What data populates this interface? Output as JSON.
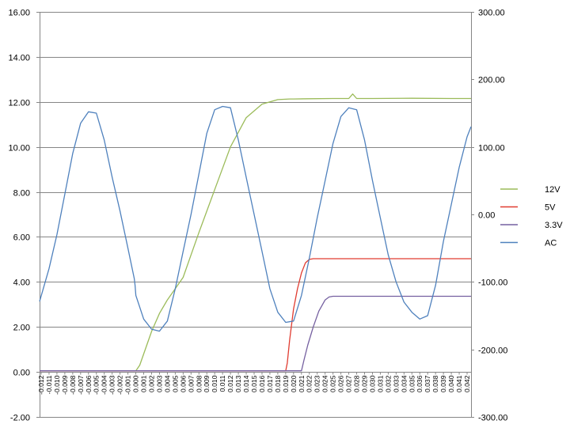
{
  "chart_data": {
    "type": "line",
    "title": "",
    "xlabel": "",
    "ylabel": "",
    "y2label": "",
    "grid": true,
    "legend_position": "right",
    "xlim": [
      -0.0122,
      0.0425
    ],
    "ylim": [
      -2,
      16
    ],
    "y2lim": [
      -300,
      300
    ],
    "y_ticks": [
      "-2.00",
      "0.00",
      "2.00",
      "4.00",
      "6.00",
      "8.00",
      "10.00",
      "12.00",
      "14.00",
      "16.00"
    ],
    "y2_ticks": [
      "-300.00",
      "-200.00",
      "-100.00",
      "0.00",
      "100.00",
      "200.00",
      "300.00"
    ],
    "x_ticks": [
      "-0.012",
      "-0.011",
      "-0.010",
      "-0.009",
      "-0.008",
      "-0.007",
      "-0.006",
      "-0.005",
      "-0.004",
      "-0.003",
      "-0.002",
      "-0.001",
      "0.000",
      "0.001",
      "0.002",
      "0.003",
      "0.004",
      "0.005",
      "0.006",
      "0.007",
      "0.008",
      "0.009",
      "0.010",
      "0.011",
      "0.012",
      "0.013",
      "0.014",
      "0.015",
      "0.016",
      "0.017",
      "0.018",
      "0.019",
      "0.020",
      "0.021",
      "0.022",
      "0.023",
      "0.024",
      "0.025",
      "0.026",
      "0.027",
      "0.028",
      "0.029",
      "0.030",
      "0.031",
      "0.032",
      "0.033",
      "0.034",
      "0.035",
      "0.036",
      "0.037",
      "0.038",
      "0.039",
      "0.040",
      "0.041",
      "0.042"
    ],
    "series": [
      {
        "name": "12V",
        "axis": "left",
        "color": "#9bbb59",
        "x": [
          -0.0122,
          0.0,
          0.0005,
          0.001,
          0.0015,
          0.002,
          0.003,
          0.004,
          0.005,
          0.006,
          0.007,
          0.008,
          0.01,
          0.012,
          0.014,
          0.016,
          0.018,
          0.019,
          0.0195,
          0.02,
          0.022,
          0.025,
          0.027,
          0.0275,
          0.028,
          0.03,
          0.035,
          0.04,
          0.0425
        ],
        "y": [
          0.05,
          0.05,
          0.3,
          0.8,
          1.3,
          1.8,
          2.6,
          3.2,
          3.7,
          4.2,
          5.2,
          6.2,
          8.1,
          10.0,
          11.3,
          11.9,
          12.1,
          12.12,
          12.13,
          12.13,
          12.14,
          12.15,
          12.15,
          12.35,
          12.15,
          12.15,
          12.16,
          12.15,
          12.15
        ]
      },
      {
        "name": "5V",
        "axis": "left",
        "color": "#e03c31",
        "x": [
          -0.0122,
          0.019,
          0.0192,
          0.0195,
          0.02,
          0.0205,
          0.021,
          0.0215,
          0.022,
          0.0225,
          0.025,
          0.03,
          0.035,
          0.04,
          0.0425
        ],
        "y": [
          0.05,
          0.05,
          0.4,
          1.4,
          2.8,
          3.7,
          4.4,
          4.85,
          5.0,
          5.03,
          5.03,
          5.03,
          5.03,
          5.03,
          5.03
        ]
      },
      {
        "name": "3.3V",
        "axis": "left",
        "color": "#7560a0",
        "x": [
          -0.0122,
          0.021,
          0.0213,
          0.0218,
          0.0225,
          0.0232,
          0.024,
          0.0245,
          0.025,
          0.03,
          0.035,
          0.04,
          0.0425
        ],
        "y": [
          0.05,
          0.05,
          0.5,
          1.2,
          2.0,
          2.7,
          3.2,
          3.33,
          3.36,
          3.36,
          3.36,
          3.36,
          3.36
        ]
      },
      {
        "name": "AC",
        "axis": "right",
        "color": "#4f81bd",
        "x": [
          -0.0122,
          -0.011,
          -0.01,
          -0.009,
          -0.008,
          -0.007,
          -0.006,
          -0.005,
          -0.004,
          -0.003,
          -0.002,
          -0.001,
          -0.0002,
          -0.0001,
          0.0,
          0.001,
          0.002,
          0.003,
          0.004,
          0.005,
          0.006,
          0.007,
          0.008,
          0.009,
          0.01,
          0.011,
          0.012,
          0.013,
          0.014,
          0.015,
          0.016,
          0.017,
          0.018,
          0.019,
          0.02,
          0.021,
          0.022,
          0.023,
          0.024,
          0.025,
          0.026,
          0.027,
          0.028,
          0.029,
          0.03,
          0.031,
          0.032,
          0.033,
          0.034,
          0.035,
          0.036,
          0.037,
          0.038,
          0.039,
          0.04,
          0.041,
          0.042,
          0.0425
        ],
        "y": [
          -129,
          -80,
          -30,
          30,
          90,
          135,
          152,
          150,
          110,
          55,
          5,
          -50,
          -95,
          -105,
          -120,
          -155,
          -170,
          -173,
          -158,
          -110,
          -55,
          0,
          60,
          120,
          155,
          160,
          158,
          110,
          55,
          0,
          -55,
          -110,
          -145,
          -160,
          -158,
          -120,
          -65,
          -5,
          50,
          105,
          145,
          158,
          155,
          110,
          50,
          -5,
          -60,
          -100,
          -130,
          -145,
          -155,
          -150,
          -105,
          -40,
          15,
          70,
          115,
          130
        ]
      }
    ]
  }
}
